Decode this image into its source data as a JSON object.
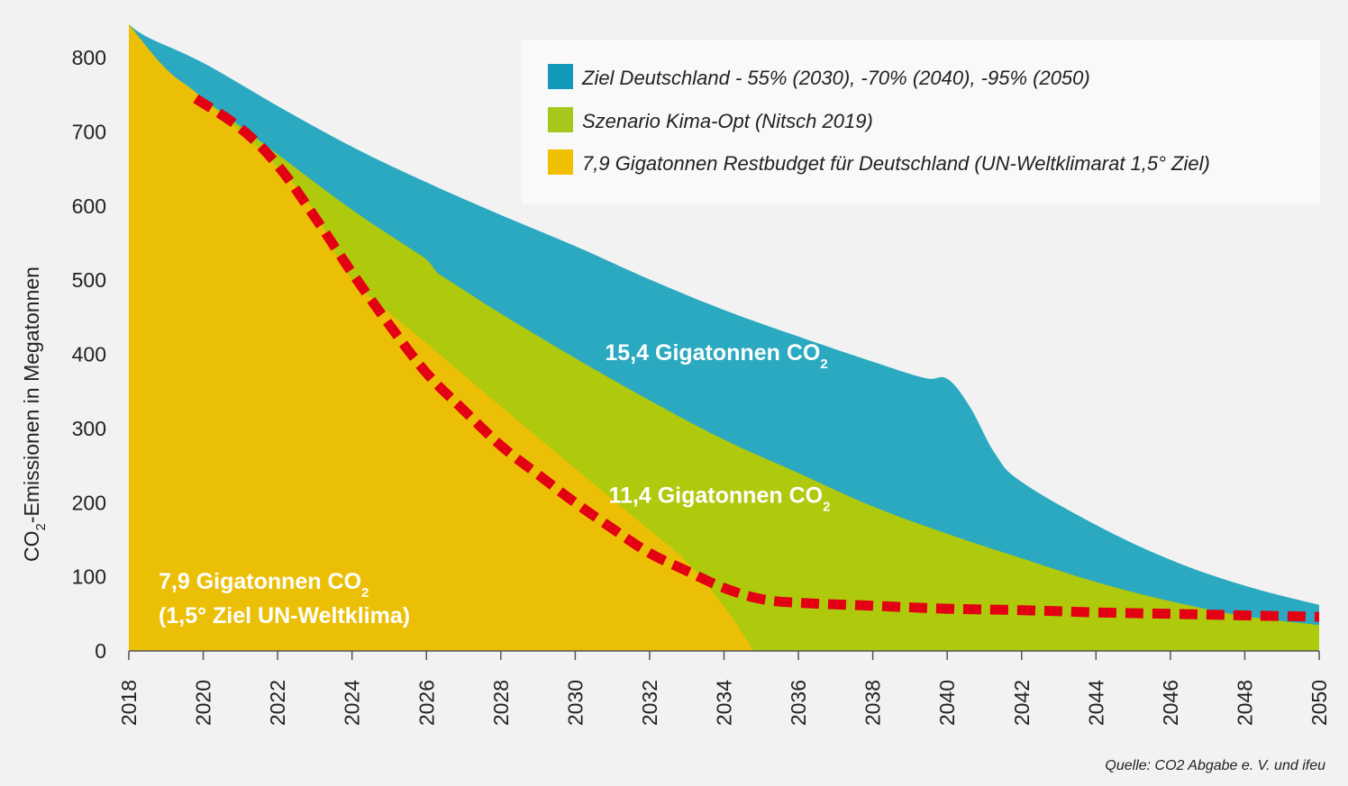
{
  "chart_data": {
    "type": "area",
    "ylabel": {
      "main": "CO",
      "sub": "2",
      "rest": "-Emissionen in Megatonnen"
    },
    "ylim": [
      0,
      850
    ],
    "xlim": [
      2018,
      2050
    ],
    "yticks": [
      0,
      100,
      200,
      300,
      400,
      500,
      600,
      700,
      800
    ],
    "xticks": [
      2018,
      2020,
      2022,
      2024,
      2026,
      2028,
      2030,
      2032,
      2034,
      2036,
      2038,
      2040,
      2042,
      2044,
      2046,
      2048,
      2050
    ],
    "grid": false,
    "legend_position": "top-right",
    "series": [
      {
        "key": "ziel",
        "name": "Ziel Deutschland - 55% (2030), -70% (2040), -95% (2050)",
        "color": "#2aa9c1",
        "legend_color": "#1199b9",
        "points": [
          [
            2018,
            845
          ],
          [
            2018.5,
            828
          ],
          [
            2020,
            793
          ],
          [
            2022,
            735
          ],
          [
            2024,
            680
          ],
          [
            2026,
            632
          ],
          [
            2028,
            588
          ],
          [
            2030,
            546
          ],
          [
            2032,
            501
          ],
          [
            2034,
            460
          ],
          [
            2036,
            424
          ],
          [
            2038,
            390
          ],
          [
            2039.4,
            368
          ],
          [
            2040,
            367
          ],
          [
            2040.6,
            330
          ],
          [
            2041.3,
            265
          ],
          [
            2042,
            228
          ],
          [
            2044,
            170
          ],
          [
            2046,
            123
          ],
          [
            2048,
            88
          ],
          [
            2050,
            62
          ]
        ]
      },
      {
        "key": "szenario",
        "name": "Szenario Kima-Opt (Nitsch 2019)",
        "color": "#afc90c",
        "legend_color": "#a6c81c",
        "points": [
          [
            2018,
            845
          ],
          [
            2019,
            785
          ],
          [
            2020,
            745
          ],
          [
            2022,
            670
          ],
          [
            2024,
            595
          ],
          [
            2025.5,
            545
          ],
          [
            2026,
            528
          ],
          [
            2026.3,
            510
          ],
          [
            2026.6,
            500
          ],
          [
            2028,
            455
          ],
          [
            2030,
            395
          ],
          [
            2032,
            338
          ],
          [
            2034,
            285
          ],
          [
            2036,
            240
          ],
          [
            2038,
            195
          ],
          [
            2040,
            158
          ],
          [
            2042,
            125
          ],
          [
            2044,
            93
          ],
          [
            2046,
            67
          ],
          [
            2048,
            47
          ],
          [
            2050,
            35
          ]
        ]
      },
      {
        "key": "budget",
        "name": "7,9 Gigatonnen Restbudget für Deutschland (UN-Weltklimarat 1,5° Ziel)",
        "color": "#ecbf07",
        "legend_color": "#f0c000",
        "points": [
          [
            2018,
            845
          ],
          [
            2019,
            785
          ],
          [
            2020,
            745
          ],
          [
            2022,
            652
          ],
          [
            2023,
            592
          ],
          [
            2024,
            502
          ],
          [
            2026,
            415
          ],
          [
            2028,
            330
          ],
          [
            2030,
            246
          ],
          [
            2032,
            163
          ],
          [
            2033,
            120
          ],
          [
            2034,
            60
          ],
          [
            2034.8,
            0
          ]
        ]
      }
    ],
    "dashed_line": {
      "name": "",
      "color": "#e30013",
      "points": [
        [
          2019.8,
          745
        ],
        [
          2021,
          705
        ],
        [
          2022,
          655
        ],
        [
          2023,
          585
        ],
        [
          2024,
          510
        ],
        [
          2025,
          440
        ],
        [
          2026,
          375
        ],
        [
          2027,
          325
        ],
        [
          2028,
          277
        ],
        [
          2029,
          238
        ],
        [
          2030,
          200
        ],
        [
          2031,
          165
        ],
        [
          2032,
          132
        ],
        [
          2033,
          108
        ],
        [
          2034,
          85
        ],
        [
          2035,
          70
        ],
        [
          2036,
          65
        ],
        [
          2038,
          61
        ],
        [
          2040,
          57
        ],
        [
          2042,
          55
        ],
        [
          2044,
          52
        ],
        [
          2046,
          50
        ],
        [
          2048,
          48
        ],
        [
          2050,
          46
        ]
      ]
    },
    "annotations": [
      {
        "main": "15,4 Gigatonnen CO",
        "sub": "2",
        "x": 2030.8,
        "y": 392
      },
      {
        "main": "11,4 Gigatonnen CO",
        "sub": "2",
        "x": 2030.9,
        "y": 200
      },
      {
        "main": "7,9 Gigatonnen CO",
        "sub": "2",
        "line2": "(1,5° Ziel UN-Weltklima)",
        "x": 2018.8,
        "y": 84
      }
    ],
    "source": "Quelle: CO2 Abgabe e. V. und ifeu"
  }
}
